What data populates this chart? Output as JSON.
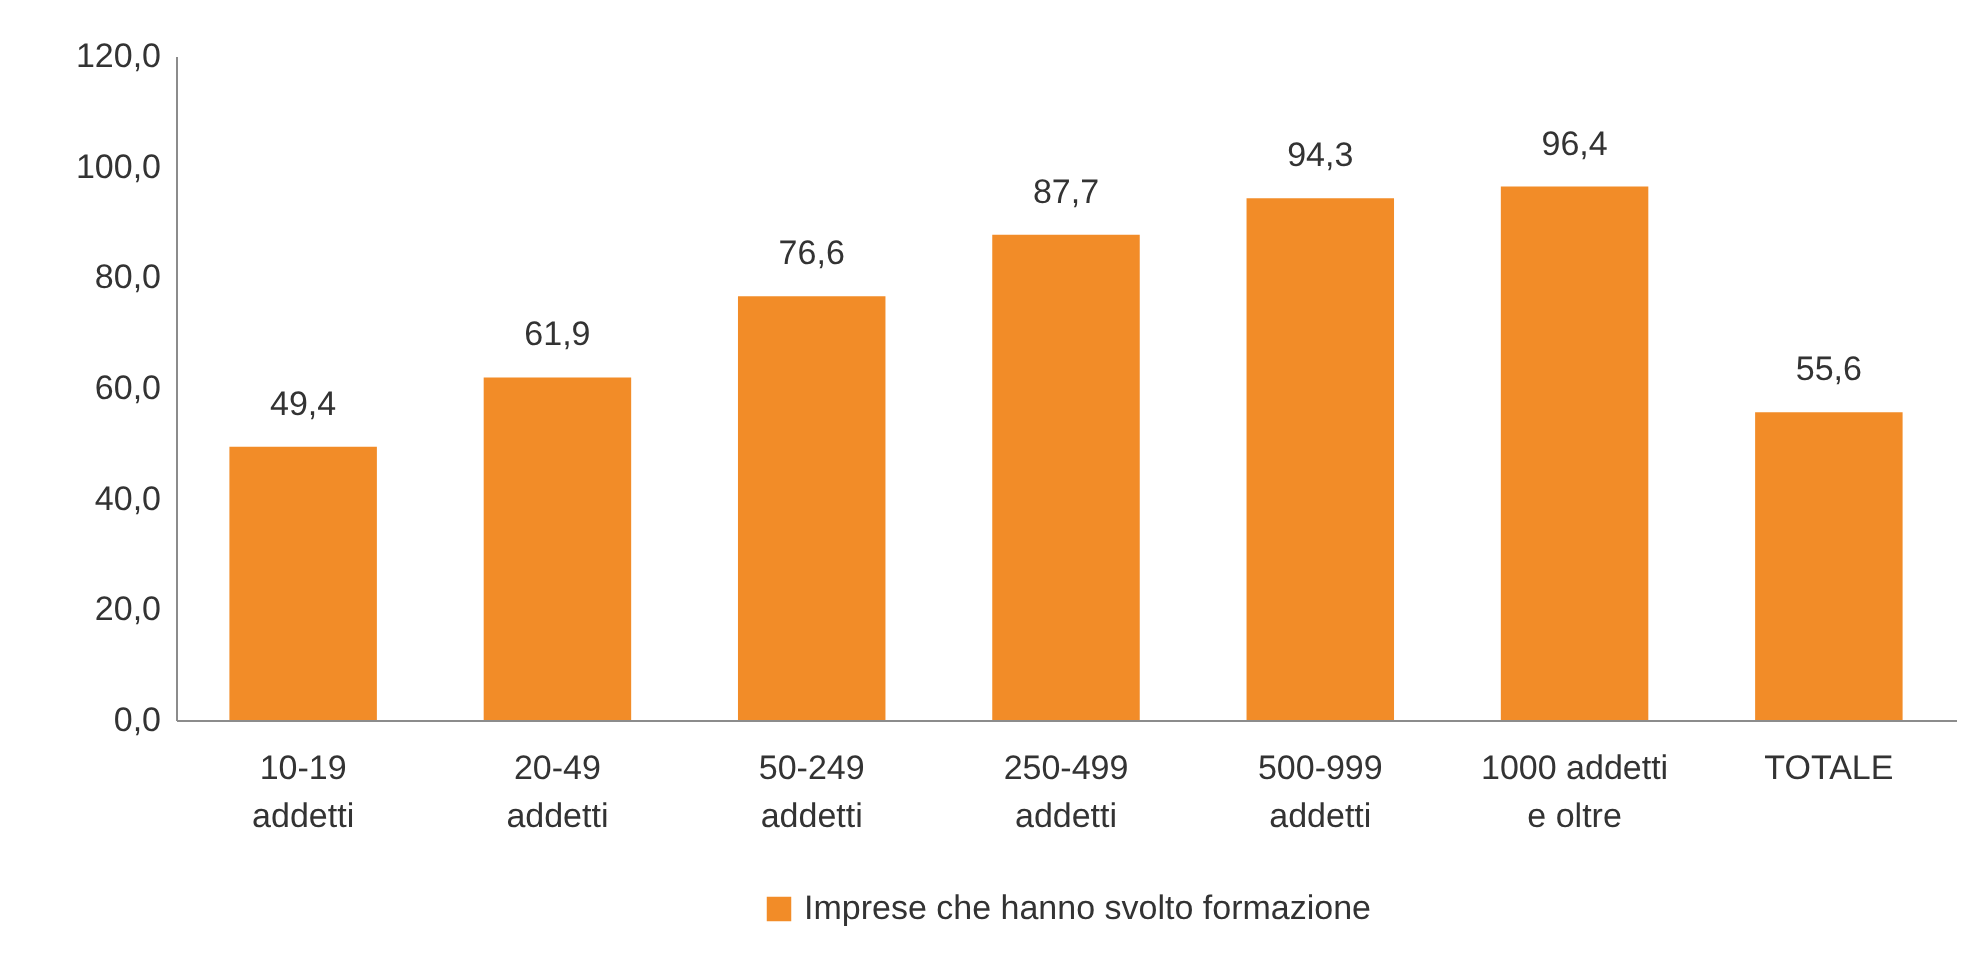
{
  "chart_data": {
    "type": "bar",
    "categories": [
      "10-19 addetti",
      "20-49 addetti",
      "50-249 addetti",
      "250-499 addetti",
      "500-999 addetti",
      "1000 addetti e oltre",
      "TOTALE"
    ],
    "series": [
      {
        "name": "Imprese che hanno svolto formazione",
        "color": "#f28c28",
        "values": [
          49.4,
          61.9,
          76.6,
          87.7,
          94.3,
          96.4,
          55.6
        ],
        "value_labels": [
          "49,4",
          "61,9",
          "76,6",
          "87,7",
          "94,3",
          "96,4",
          "55,6"
        ]
      }
    ],
    "ylim": [
      0,
      120
    ],
    "yticks": [
      {
        "value": 0,
        "label": "0,0"
      },
      {
        "value": 20,
        "label": "20,0"
      },
      {
        "value": 40,
        "label": "40,0"
      },
      {
        "value": 60,
        "label": "60,0"
      },
      {
        "value": 80,
        "label": "80,0"
      },
      {
        "value": 100,
        "label": "100,0"
      },
      {
        "value": 120,
        "label": "120,0"
      }
    ],
    "legend": "bottom"
  }
}
